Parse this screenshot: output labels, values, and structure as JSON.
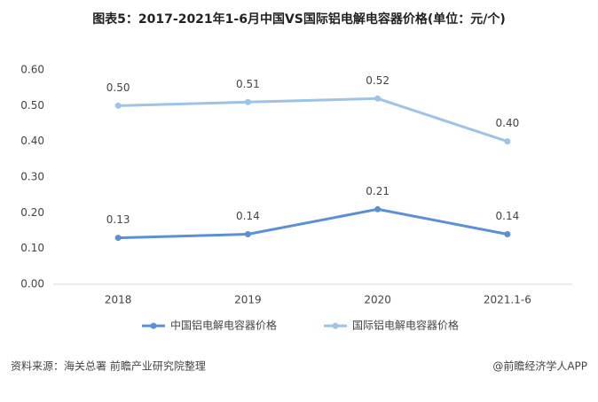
{
  "chart_data": {
    "type": "line",
    "title": "图表5：2017-2021年1-6月中国VS国际铝电解电容器价格(单位：元/个)",
    "categories": [
      "2018",
      "2019",
      "2020",
      "2021.1-6"
    ],
    "series": [
      {
        "name": "中国铝电解电容器价格",
        "color": "#5b8fd6",
        "values": [
          0.13,
          0.14,
          0.21,
          0.14
        ],
        "value_labels": [
          "0.13",
          "0.14",
          "0.21",
          "0.14"
        ]
      },
      {
        "name": "国际铝电解电容器价格",
        "color": "#9dc3e6",
        "values": [
          0.5,
          0.51,
          0.52,
          0.4
        ],
        "value_labels": [
          "0.50",
          "0.51",
          "0.52",
          "0.40"
        ]
      }
    ],
    "ylim": [
      0,
      0.6
    ],
    "yticks": [
      {
        "value": 0,
        "label": "0.00"
      },
      {
        "value": 0.1,
        "label": "0.10"
      },
      {
        "value": 0.2,
        "label": "0.20"
      },
      {
        "value": 0.3,
        "label": "0.30"
      },
      {
        "value": 0.4,
        "label": "0.40"
      },
      {
        "value": 0.5,
        "label": "0.50"
      },
      {
        "value": 0.6,
        "label": "0.60"
      }
    ],
    "grid": false,
    "source": "资料来源：海关总署 前瞻产业研究院整理",
    "credit": "@前瞻经济学人APP"
  }
}
